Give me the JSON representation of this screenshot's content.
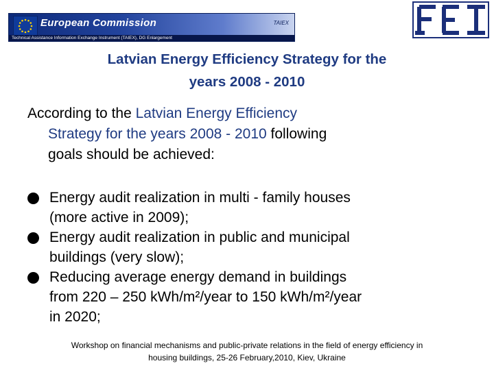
{
  "header": {
    "banner_title": "European Commission",
    "banner_subtitle": "Technical Assistance Information Exchange Instrument (TAIEX), DG Enlargement",
    "banner_tag": "TAIEX",
    "colors": {
      "banner_dark": "#0d2a7a",
      "title_blue": "#1f3b82"
    },
    "icons": [
      "eu-flag-icon",
      "fei-logo-icon"
    ]
  },
  "slide": {
    "title_line1": "Latvian Energy Efficiency Strategy for the",
    "title_line2": "years 2008 - 2010",
    "intro": {
      "lead": "According to the ",
      "highlight1": "Latvian Energy Efficiency",
      "highlight2": "Strategy for the years 2008 - 2010",
      "tail1": " following",
      "tail2": "goals should be achieved:"
    },
    "bullets": [
      {
        "line1": "Energy audit realization in multi - family houses",
        "line2": "(more active in 2009);"
      },
      {
        "line1": "Energy audit realization in public and municipal",
        "line2": "buildings (very slow);"
      },
      {
        "line1": "Reducing average energy demand in buildings",
        "line2": "from 220 – 250 kWh/m²/year to 150 kWh/m²/year",
        "line3": "in 2020;"
      }
    ]
  },
  "footer": {
    "line1": "Workshop on financial mechanisms and public-private relations in the field of energy efficiency in",
    "line2": "housing buildings, 25-26 February,2010, Kiev, Ukraine"
  }
}
